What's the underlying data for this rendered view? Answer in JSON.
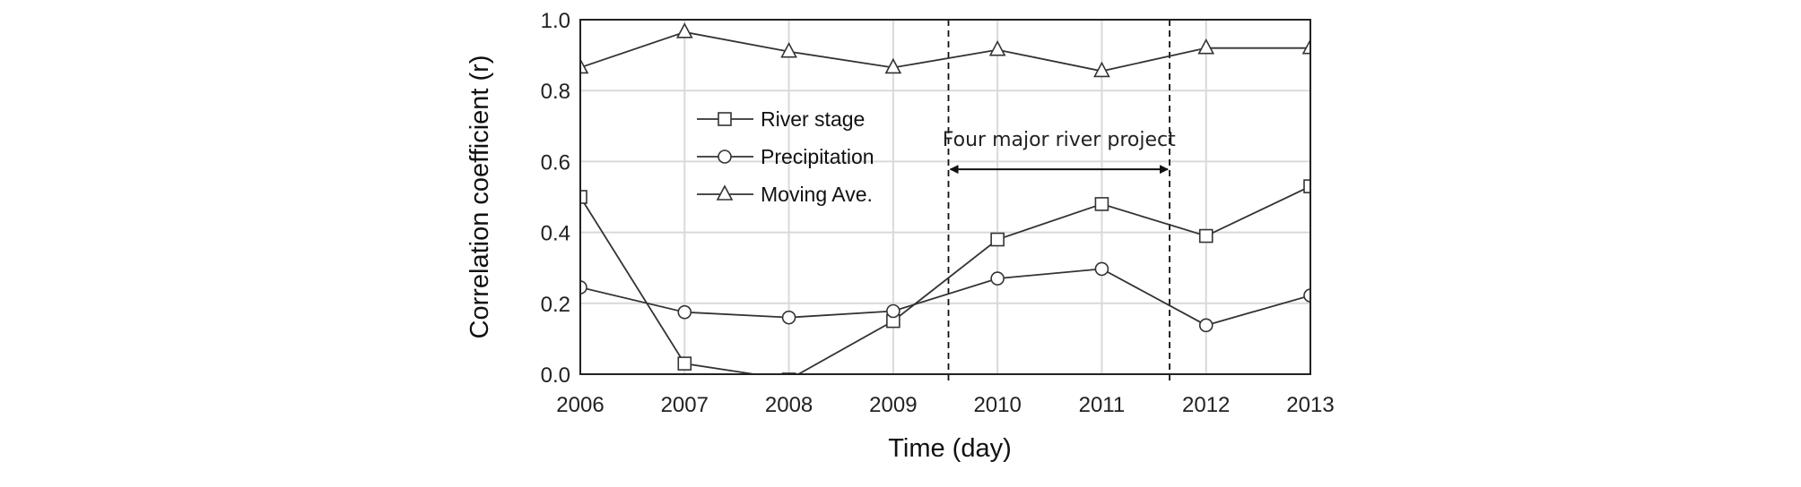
{
  "chart_data": {
    "type": "line",
    "title": "",
    "xlabel": "Time (day)",
    "ylabel": "Correlation coefficient (r)",
    "x": [
      2006,
      2007,
      2008,
      2009,
      2010,
      2011,
      2012,
      2013
    ],
    "x_tick_labels": [
      "2006",
      "2007",
      "2008",
      "2009",
      "2010",
      "2011",
      "2012",
      "2013"
    ],
    "ylim": [
      0.0,
      1.0
    ],
    "y_ticks": [
      0.0,
      0.2,
      0.4,
      0.6,
      0.8,
      1.0
    ],
    "y_tick_labels": [
      "0.0",
      "0.2",
      "0.4",
      "0.6",
      "0.8",
      "1.0"
    ],
    "grid": true,
    "legend_placement": "upper-left-center",
    "series": [
      {
        "name": "River stage",
        "marker": "square",
        "values": [
          0.5,
          0.03,
          -0.015,
          0.15,
          0.38,
          0.48,
          0.39,
          0.53
        ]
      },
      {
        "name": "Precipitation",
        "marker": "circle",
        "values": [
          0.245,
          0.175,
          0.16,
          0.178,
          0.27,
          0.297,
          0.138,
          0.222
        ]
      },
      {
        "name": "Moving Ave.",
        "marker": "triangle",
        "values": [
          0.865,
          0.965,
          0.91,
          0.865,
          0.915,
          0.855,
          0.92,
          0.92
        ]
      }
    ],
    "annotations": [
      {
        "text": "Four major river project",
        "x_start": 2009.53,
        "x_end": 2011.65,
        "arrow_y": 0.578,
        "type": "double-arrow-between-dashed-lines"
      }
    ],
    "colors": {
      "line": "#333333",
      "grid": "#d9d9d9",
      "axis": "#222222"
    }
  }
}
